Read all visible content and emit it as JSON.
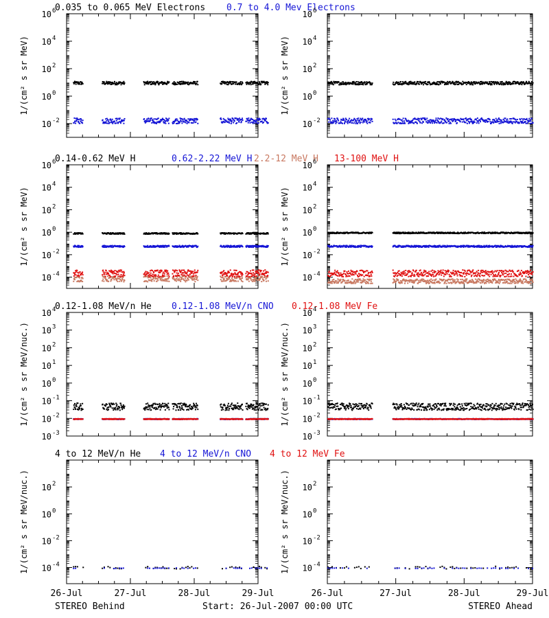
{
  "footer": {
    "left": "STEREO Behind",
    "center": "Start: 26-Jul-2007 00:00 UTC",
    "right": "STEREO Ahead"
  },
  "x_ticks": [
    "26-Jul",
    "27-Jul",
    "28-Jul",
    "29-Jul"
  ],
  "colors": {
    "black": "#000000",
    "blue": "#1515d6",
    "red": "#e01010",
    "salmon": "#c87860"
  },
  "chart_data": [
    {
      "type": "scatter",
      "row": 0,
      "ylabel": "1/(cm² s sr MeV)",
      "ylim_log10": [
        -3,
        6
      ],
      "ytick_exponents": [
        -2,
        0,
        2,
        4,
        6
      ],
      "legend": [
        {
          "text": "0.035 to 0.065 MeV Electrons",
          "color": "#000000"
        },
        {
          "text": "0.7 to 4.0 Mev Electrons",
          "color": "#1515d6"
        }
      ],
      "behind": {
        "segments": [
          [
            0.1,
            0.25
          ],
          [
            0.55,
            0.9
          ],
          [
            1.2,
            1.6
          ],
          [
            1.65,
            2.05
          ],
          [
            2.4,
            2.75
          ],
          [
            2.8,
            3.15
          ]
        ],
        "series": [
          {
            "name": "0.035 to 0.065 MeV Electrons",
            "color": "#000000",
            "log10": 1.0,
            "spread": 0.12
          },
          {
            "name": "0.7 to 4.0 Mev Electrons",
            "color": "#1515d6",
            "log10": -1.75,
            "spread": 0.2
          }
        ]
      },
      "ahead": {
        "segments": [
          [
            0.0,
            0.65
          ],
          [
            0.95,
            3.0
          ]
        ],
        "series": [
          {
            "name": "0.035 to 0.065 MeV Electrons",
            "color": "#000000",
            "log10": 1.0,
            "spread": 0.12
          },
          {
            "name": "0.7 to 4.0 Mev Electrons",
            "color": "#1515d6",
            "log10": -1.75,
            "spread": 0.2
          }
        ]
      }
    },
    {
      "type": "scatter",
      "row": 1,
      "ylabel": "1/(cm² s sr MeV)",
      "ylim_log10": [
        -5,
        6
      ],
      "ytick_exponents": [
        -4,
        -2,
        0,
        2,
        4,
        6
      ],
      "legend": [
        {
          "text": "0.14-0.62 MeV H",
          "color": "#000000"
        },
        {
          "text": "0.62-2.22 MeV H",
          "color": "#1515d6"
        },
        {
          "text": "2.2-12 MeV H",
          "color": "#c87860"
        },
        {
          "text": "13-100 MeV H",
          "color": "#e01010"
        }
      ],
      "behind": {
        "segments": [
          [
            0.1,
            0.25
          ],
          [
            0.55,
            0.9
          ],
          [
            1.2,
            1.6
          ],
          [
            1.65,
            2.05
          ],
          [
            2.4,
            2.75
          ],
          [
            2.8,
            3.15
          ]
        ],
        "series": [
          {
            "name": "0.14-0.62 MeV H",
            "color": "#000000",
            "log10": -0.05,
            "spread": 0.06
          },
          {
            "name": "0.62-2.22 MeV H",
            "color": "#1515d6",
            "log10": -1.2,
            "spread": 0.08
          },
          {
            "name": "2.2-12 MeV H",
            "color": "#c87860",
            "log10": -4.1,
            "spread": 0.25
          },
          {
            "name": "13-100 MeV H",
            "color": "#e01010",
            "log10": -3.6,
            "spread": 0.3
          }
        ]
      },
      "ahead": {
        "segments": [
          [
            0.0,
            0.65
          ],
          [
            0.95,
            3.0
          ]
        ],
        "series": [
          {
            "name": "0.14-0.62 MeV H",
            "color": "#000000",
            "log10": 0.0,
            "spread": 0.06
          },
          {
            "name": "0.62-2.22 MeV H",
            "color": "#1515d6",
            "log10": -1.2,
            "spread": 0.08
          },
          {
            "name": "2.2-12 MeV H",
            "color": "#c87860",
            "log10": -4.3,
            "spread": 0.2
          },
          {
            "name": "13-100 MeV H",
            "color": "#e01010",
            "log10": -3.6,
            "spread": 0.3
          }
        ]
      }
    },
    {
      "type": "scatter",
      "row": 2,
      "ylabel": "1/(cm² s sr MeV/nuc.)",
      "ylim_log10": [
        -3,
        4
      ],
      "ytick_exponents": [
        -3,
        -2,
        -1,
        0,
        1,
        2,
        3,
        4
      ],
      "legend": [
        {
          "text": "0.12-1.08 MeV/n He",
          "color": "#000000"
        },
        {
          "text": "0.12-1.08 MeV/n CNO",
          "color": "#1515d6"
        },
        {
          "text": "0.12-1.08 MeV Fe",
          "color": "#e01010"
        }
      ],
      "behind": {
        "segments": [
          [
            0.1,
            0.25
          ],
          [
            0.55,
            0.9
          ],
          [
            1.2,
            1.6
          ],
          [
            1.65,
            2.05
          ],
          [
            2.4,
            2.75
          ],
          [
            2.8,
            3.15
          ]
        ],
        "series": [
          {
            "name": "0.12-1.08 MeV/n He",
            "color": "#000000",
            "log10": -1.3,
            "spread": 0.2
          },
          {
            "name": "0.12-1.08 MeV/n CNO",
            "color": "#1515d6",
            "log10": -2.0,
            "spread": 0.02
          },
          {
            "name": "0.12-1.08 MeV Fe",
            "color": "#e01010",
            "log10": -2.0,
            "spread": 0.02
          }
        ]
      },
      "ahead": {
        "segments": [
          [
            0.0,
            0.65
          ],
          [
            0.95,
            3.0
          ]
        ],
        "series": [
          {
            "name": "0.12-1.08 MeV/n He",
            "color": "#000000",
            "log10": -1.3,
            "spread": 0.2
          },
          {
            "name": "0.12-1.08 MeV/n CNO",
            "color": "#1515d6",
            "log10": -2.0,
            "spread": 0.02
          },
          {
            "name": "0.12-1.08 MeV Fe",
            "color": "#e01010",
            "log10": -2.0,
            "spread": 0.02
          }
        ]
      }
    },
    {
      "type": "scatter",
      "row": 3,
      "ylabel": "1/(cm² s sr MeV/nuc.)",
      "ylim_log10": [
        -5.2,
        4
      ],
      "ytick_exponents": [
        -4,
        -2,
        0,
        2
      ],
      "legend": [
        {
          "text": "4 to 12 MeV/n He",
          "color": "#000000"
        },
        {
          "text": "4 to 12 MeV/n CNO",
          "color": "#1515d6"
        },
        {
          "text": "4 to 12 MeV Fe",
          "color": "#e01010"
        }
      ],
      "behind": {
        "segments": [
          [
            0.1,
            0.25
          ],
          [
            0.55,
            0.9
          ],
          [
            1.2,
            1.6
          ],
          [
            1.65,
            2.05
          ],
          [
            2.4,
            2.75
          ],
          [
            2.8,
            3.15
          ]
        ],
        "series": [
          {
            "name": "4 to 12 MeV/n He",
            "color": "#000000",
            "log10": -3.95,
            "spread": 0.1,
            "sparse": true
          },
          {
            "name": "4 to 12 MeV/n CNO",
            "color": "#1515d6",
            "log10": -4.0,
            "spread": 0.02,
            "sparse": true
          }
        ]
      },
      "ahead": {
        "segments": [
          [
            0.0,
            0.65
          ],
          [
            0.95,
            3.0
          ]
        ],
        "series": [
          {
            "name": "4 to 12 MeV/n He",
            "color": "#000000",
            "log10": -3.95,
            "spread": 0.1,
            "sparse": true
          },
          {
            "name": "4 to 12 MeV/n CNO",
            "color": "#1515d6",
            "log10": -4.0,
            "spread": 0.02,
            "sparse": true
          }
        ]
      }
    }
  ]
}
